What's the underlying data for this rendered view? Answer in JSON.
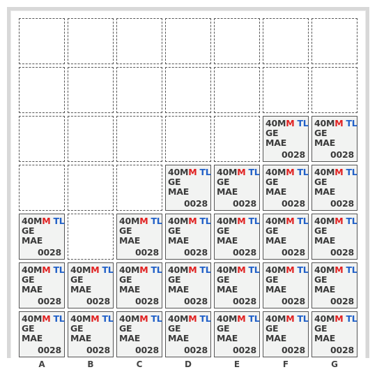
{
  "columns": [
    "A",
    "B",
    "C",
    "D",
    "E",
    "F",
    "G"
  ],
  "rows": 7,
  "tile": {
    "caliber": "40M",
    "caliber_highlight": "M",
    "tag": "TL",
    "line2": "GE",
    "line3": "MAE",
    "count": "0028"
  },
  "colors": {
    "highlight_red": "#e02020",
    "tag_blue": "#2060c8",
    "tile_bg": "#f2f3f2",
    "frame": "#d8d8d8"
  },
  "grid": [
    [
      0,
      0,
      0,
      0,
      0,
      0,
      0
    ],
    [
      0,
      0,
      0,
      0,
      0,
      0,
      0
    ],
    [
      0,
      0,
      0,
      0,
      0,
      1,
      1
    ],
    [
      0,
      0,
      0,
      1,
      1,
      1,
      1
    ],
    [
      1,
      0,
      1,
      1,
      1,
      1,
      1
    ],
    [
      1,
      1,
      1,
      1,
      1,
      1,
      1
    ],
    [
      1,
      1,
      1,
      1,
      1,
      1,
      1
    ]
  ]
}
